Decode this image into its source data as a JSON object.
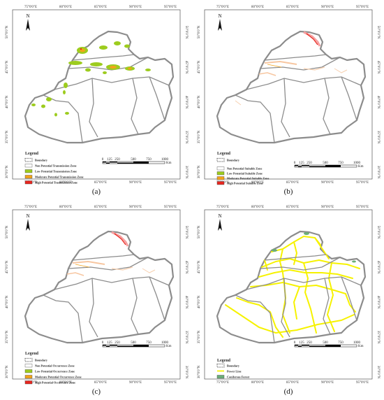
{
  "lon_ticks": [
    "75°0'0\"E",
    "80°0'0\"E",
    "85°0'0\"E",
    "90°0'0\"E",
    "95°0'0\"E"
  ],
  "lat_ticks": [
    "50°0'0\"N",
    "45°0'0\"N",
    "40°0'0\"N",
    "35°0'0\"N",
    "30°0'0\"N"
  ],
  "north_label": "N",
  "scale": {
    "values": [
      "0",
      "125",
      "250",
      "500",
      "750",
      "1000"
    ],
    "unit": "Km"
  },
  "colors": {
    "boundary": "#8c8c8c",
    "non": "#ffffff",
    "low": "#9dcc1e",
    "moderate": "#f2a31b",
    "high": "#e8261f",
    "power_line": "#f6f200",
    "coniferous": "#6cae78"
  },
  "panels": [
    {
      "caption": "(a)",
      "legend_title": "Legend",
      "legend_items": [
        {
          "label": "Boundary",
          "swatch": "boundary"
        },
        {
          "label": "Non Potential Transmission Zone",
          "swatch": "non"
        },
        {
          "label": "Low Potential Transmission Zone",
          "swatch": "low"
        },
        {
          "label": "Moderate Potential Transmission Zone",
          "swatch": "moderate"
        },
        {
          "label": "High Potential Transmission Zone",
          "swatch": "high"
        }
      ]
    },
    {
      "caption": "(b)",
      "legend_title": "Legend",
      "legend_items": [
        {
          "label": "Boundary",
          "swatch": "boundary"
        },
        {
          "label": "Non Potential Suitable Zone",
          "swatch": "non"
        },
        {
          "label": "Low Potential Suitable Zone",
          "swatch": "low"
        },
        {
          "label": "Moderate Potential Suitable Zone",
          "swatch": "moderate"
        },
        {
          "label": "High  Potential Suitable Zone",
          "swatch": "high"
        }
      ]
    },
    {
      "caption": "(c)",
      "legend_title": "Legend",
      "legend_items": [
        {
          "label": "Boundary",
          "swatch": "boundary"
        },
        {
          "label": "Non Potential Occurrence Zone",
          "swatch": "non"
        },
        {
          "label": "Low Potential Occurrence Zone",
          "swatch": "low"
        },
        {
          "label": "Moderate Potential Occurrence Zone",
          "swatch": "moderate"
        },
        {
          "label": "High Potential Occurrence Zone",
          "swatch": "high"
        }
      ]
    },
    {
      "caption": "(d)",
      "legend_title": "Legend",
      "legend_items": [
        {
          "label": "Boundary",
          "swatch": "boundary"
        },
        {
          "label": "Power Line",
          "swatch": "power_line"
        },
        {
          "label": "Coniferous Forest",
          "swatch": "coniferous"
        }
      ]
    }
  ]
}
